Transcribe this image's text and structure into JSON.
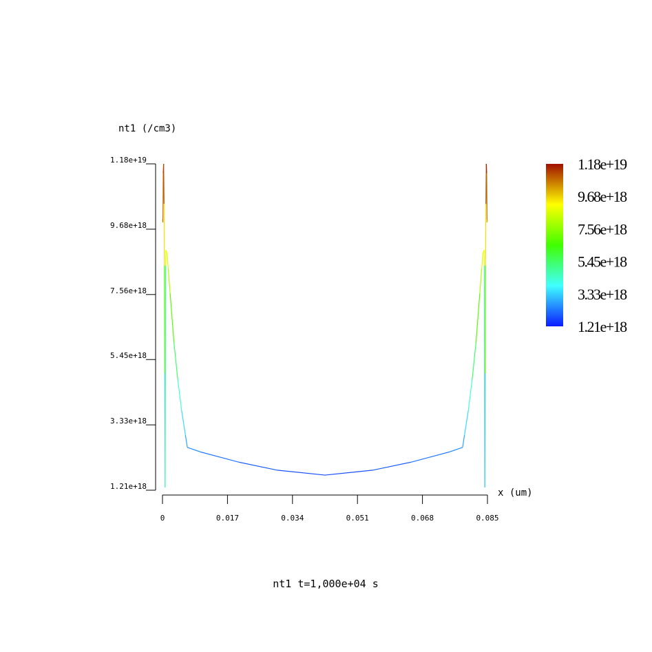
{
  "chart_data": {
    "type": "line",
    "ylabel": "nt1 (/cm3)",
    "xlabel": "x (um)",
    "caption": "nt1 t=1,000e+04 s",
    "xlim": [
      0,
      0.085
    ],
    "ylim": [
      1.21e+18,
      1.18e+19
    ],
    "x_ticks": [
      {
        "value": 0,
        "label": "0"
      },
      {
        "value": 0.017,
        "label": "0.017"
      },
      {
        "value": 0.034,
        "label": "0.034"
      },
      {
        "value": 0.051,
        "label": "0.051"
      },
      {
        "value": 0.068,
        "label": "0.068"
      },
      {
        "value": 0.085,
        "label": "0.085"
      }
    ],
    "y_ticks": [
      {
        "value": 1.21e+18,
        "label": "1.21e+18"
      },
      {
        "value": 3.33e+18,
        "label": "3.33e+18"
      },
      {
        "value": 5.45e+18,
        "label": "5.45e+18"
      },
      {
        "value": 7.56e+18,
        "label": "7.56e+18"
      },
      {
        "value": 9.68e+18,
        "label": "9.68e+18"
      },
      {
        "value": 1.18e+19,
        "label": "1.18e+19"
      }
    ],
    "colorbar": {
      "min": 1.21e+18,
      "max": 1.18e+19,
      "labels": [
        "1.18e+19",
        "9.68e+18",
        "7.56e+18",
        "5.45e+18",
        "3.33e+18",
        "1.21e+18"
      ],
      "colors": [
        "#0a1cff",
        "#40ffff",
        "#40ff00",
        "#ffff00",
        "#a01000"
      ]
    },
    "series": [
      {
        "points": [
          [
            0.0,
            1e+19
          ],
          [
            0.0001,
            9.9e+18
          ],
          [
            0.0002,
            1.15e+19
          ],
          [
            0.0003,
            1.18e+19
          ],
          [
            0.0004,
            1.05e+19
          ],
          [
            0.0005,
            8.5e+18
          ],
          [
            0.0006,
            5e+18
          ],
          [
            0.0007,
            1.3e+18
          ],
          [
            0.0008,
            8.5e+18
          ],
          [
            0.0009,
            9e+18
          ],
          [
            0.0012,
            8.9e+18
          ],
          [
            0.0015,
            8.4e+18
          ],
          [
            0.002,
            7.6e+18
          ],
          [
            0.003,
            6e+18
          ],
          [
            0.004,
            4.8e+18
          ],
          [
            0.005,
            3.8e+18
          ],
          [
            0.006,
            3e+18
          ],
          [
            0.0065,
            2.6e+18
          ],
          [
            0.01,
            2.45e+18
          ],
          [
            0.02,
            2.12e+18
          ],
          [
            0.03,
            1.86e+18
          ],
          [
            0.0425,
            1.7e+18
          ],
          [
            0.055,
            1.86e+18
          ],
          [
            0.065,
            2.12e+18
          ],
          [
            0.075,
            2.45e+18
          ],
          [
            0.0785,
            2.6e+18
          ],
          [
            0.079,
            3e+18
          ],
          [
            0.08,
            3.8e+18
          ],
          [
            0.081,
            4.8e+18
          ],
          [
            0.082,
            6e+18
          ],
          [
            0.083,
            7.6e+18
          ],
          [
            0.0835,
            8.4e+18
          ],
          [
            0.0838,
            8.9e+18
          ],
          [
            0.0841,
            9e+18
          ],
          [
            0.0842,
            8.5e+18
          ],
          [
            0.0843,
            1.3e+18
          ],
          [
            0.0844,
            5e+18
          ],
          [
            0.0845,
            8.5e+18
          ],
          [
            0.0846,
            1.05e+19
          ],
          [
            0.0847,
            1.18e+19
          ],
          [
            0.0848,
            1.15e+19
          ],
          [
            0.0849,
            9.9e+18
          ],
          [
            0.085,
            1e+19
          ]
        ]
      }
    ]
  }
}
